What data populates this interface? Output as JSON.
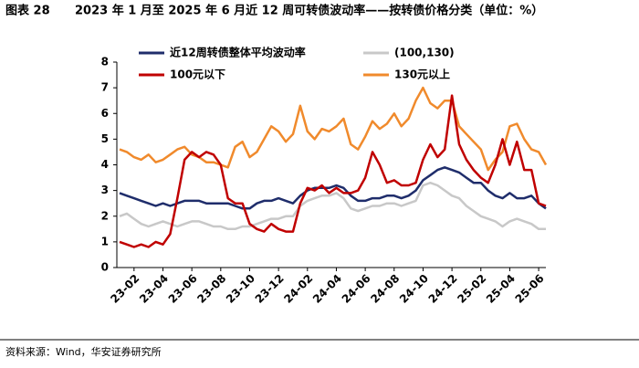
{
  "chart_data": {
    "type": "line",
    "title_label": "图表 28",
    "title": "2023 年 1 月至 2025 年 6 月近 12 周可转债波动率——按转债价格分类（单位：%）",
    "source": "资料来源：Wind，华安证券研究所",
    "categories": [
      null,
      null,
      "23-02",
      null,
      null,
      null,
      "23-04",
      null,
      null,
      null,
      "23-06",
      null,
      null,
      null,
      "23-08",
      null,
      null,
      null,
      "23-10",
      null,
      null,
      null,
      "23-12",
      null,
      null,
      null,
      "24-02",
      null,
      null,
      null,
      "24-04",
      null,
      null,
      null,
      "24-06",
      null,
      null,
      null,
      "24-08",
      null,
      null,
      null,
      "24-10",
      null,
      null,
      null,
      "24-12",
      null,
      null,
      null,
      "25-02",
      null,
      null,
      null,
      "25-04",
      null,
      null,
      null,
      "25-06",
      null
    ],
    "ylim": [
      0,
      8
    ],
    "yticks": [
      0,
      1,
      2,
      3,
      4,
      5,
      6,
      7,
      8
    ],
    "series": [
      {
        "name": "近12周转债整体平均波动率",
        "color": "#1f2d6b",
        "values": [
          2.9,
          2.8,
          2.7,
          2.6,
          2.5,
          2.4,
          2.5,
          2.4,
          2.5,
          2.6,
          2.6,
          2.6,
          2.5,
          2.5,
          2.5,
          2.5,
          2.4,
          2.3,
          2.3,
          2.5,
          2.6,
          2.6,
          2.7,
          2.6,
          2.5,
          2.8,
          3.0,
          3.1,
          3.1,
          3.1,
          3.2,
          3.1,
          2.8,
          2.6,
          2.6,
          2.7,
          2.7,
          2.8,
          2.8,
          2.7,
          2.8,
          3.0,
          3.4,
          3.6,
          3.8,
          3.9,
          3.8,
          3.7,
          3.5,
          3.3,
          3.3,
          3.0,
          2.8,
          2.7,
          2.9,
          2.7,
          2.7,
          2.8,
          2.5,
          2.3
        ]
      },
      {
        "name": "(100,130)",
        "color": "#c8c8c8",
        "values": [
          2.0,
          2.1,
          1.9,
          1.7,
          1.6,
          1.7,
          1.8,
          1.7,
          1.6,
          1.7,
          1.8,
          1.8,
          1.7,
          1.6,
          1.6,
          1.5,
          1.5,
          1.6,
          1.6,
          1.7,
          1.8,
          1.9,
          1.9,
          2.0,
          2.0,
          2.4,
          2.6,
          2.7,
          2.8,
          2.8,
          2.9,
          2.7,
          2.3,
          2.2,
          2.3,
          2.4,
          2.4,
          2.5,
          2.5,
          2.4,
          2.5,
          2.6,
          3.2,
          3.3,
          3.2,
          3.0,
          2.8,
          2.7,
          2.4,
          2.2,
          2.0,
          1.9,
          1.8,
          1.6,
          1.8,
          1.9,
          1.8,
          1.7,
          1.5,
          1.5
        ]
      },
      {
        "name": "100元以下",
        "color": "#c00000",
        "values": [
          1.0,
          0.9,
          0.8,
          0.9,
          0.8,
          1.0,
          0.9,
          1.3,
          2.7,
          4.2,
          4.5,
          4.3,
          4.5,
          4.4,
          4.0,
          2.7,
          2.5,
          2.5,
          1.7,
          1.5,
          1.4,
          1.7,
          1.5,
          1.4,
          1.4,
          2.5,
          3.1,
          3.0,
          3.2,
          2.9,
          3.1,
          2.9,
          2.9,
          3.0,
          3.5,
          4.5,
          4.0,
          3.3,
          3.4,
          3.2,
          3.2,
          3.3,
          4.2,
          4.8,
          4.3,
          4.6,
          6.7,
          4.8,
          4.2,
          3.8,
          3.5,
          3.3,
          4.0,
          5.0,
          4.0,
          4.9,
          3.8,
          3.8,
          2.5,
          2.4
        ]
      },
      {
        "name": "130元以上",
        "color": "#f08a2c",
        "values": [
          4.6,
          4.5,
          4.3,
          4.2,
          4.4,
          4.1,
          4.2,
          4.4,
          4.6,
          4.7,
          4.4,
          4.3,
          4.1,
          4.1,
          4.0,
          3.9,
          4.7,
          4.9,
          4.3,
          4.5,
          5.0,
          5.5,
          5.3,
          4.9,
          5.2,
          6.3,
          5.3,
          5.0,
          5.4,
          5.3,
          5.5,
          5.8,
          4.8,
          4.6,
          5.1,
          5.7,
          5.4,
          5.6,
          6.0,
          5.5,
          5.8,
          6.5,
          7.0,
          6.4,
          6.2,
          6.5,
          6.5,
          5.5,
          5.2,
          4.9,
          4.6,
          3.8,
          4.2,
          4.5,
          5.5,
          5.6,
          5.0,
          4.6,
          4.5,
          4.0
        ]
      }
    ]
  }
}
